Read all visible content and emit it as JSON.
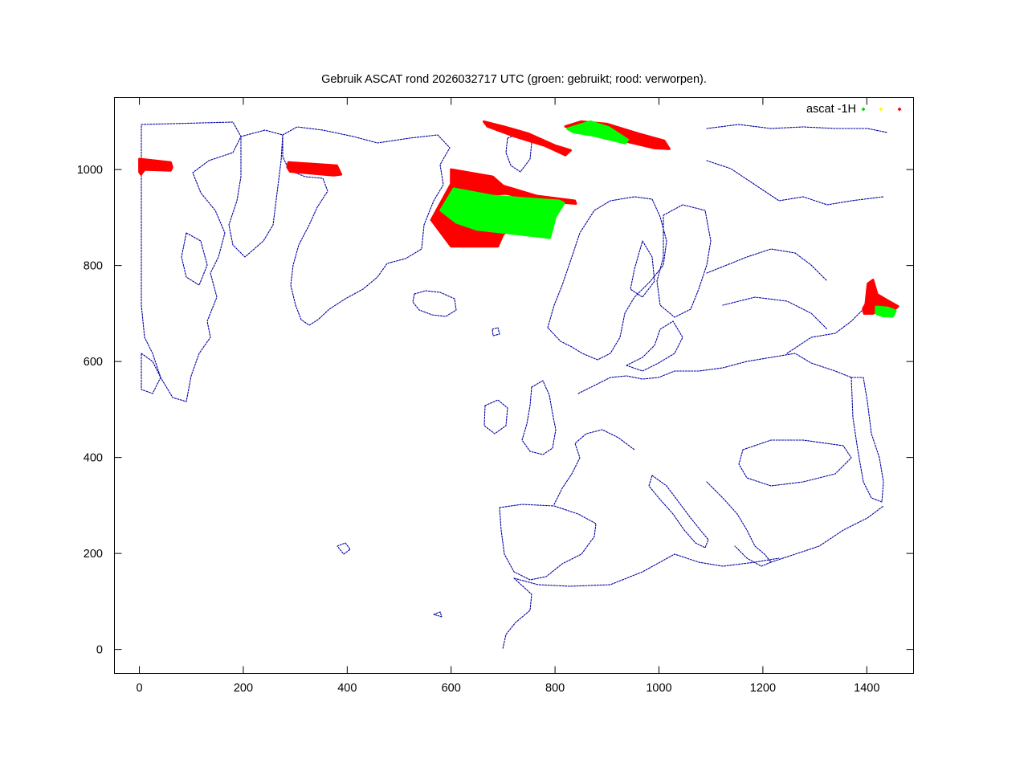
{
  "chart_data": {
    "type": "scatter",
    "title": "Gebruik ASCAT rond 2026032717 UTC (groen: gebruikt; rood: verworpen).",
    "xlabel": "",
    "ylabel": "",
    "xlim": [
      -48,
      1490
    ],
    "ylim": [
      -50,
      1150
    ],
    "x_ticks": [
      0,
      200,
      400,
      600,
      800,
      1000,
      1200,
      1400
    ],
    "y_ticks": [
      0,
      200,
      400,
      600,
      800,
      1000
    ],
    "x_tick_labels": [
      "0",
      "200",
      "400",
      "600",
      "800",
      "1000",
      "1200",
      "1400"
    ],
    "y_tick_labels": [
      "0",
      "200",
      "400",
      "600",
      "800",
      "1000"
    ],
    "grid": false,
    "legend": {
      "placement": "top-right",
      "label": "ascat -1H",
      "marker_colors": [
        "#00dd00",
        "#ffff00",
        "#ff0000"
      ]
    },
    "colors": {
      "used": "#00ff00",
      "rejected": "#ff0000",
      "coastline": "#0000a0"
    },
    "regions": [
      {
        "status": "rejected",
        "points": [
          [
            0,
            1022
          ],
          [
            60,
            1015
          ],
          [
            63,
            1005
          ],
          [
            60,
            998
          ],
          [
            10,
            1000
          ],
          [
            3,
            990
          ],
          [
            0,
            995
          ]
        ]
      },
      {
        "status": "rejected",
        "points": [
          [
            287,
            1015
          ],
          [
            380,
            1008
          ],
          [
            388,
            990
          ],
          [
            374,
            988
          ],
          [
            290,
            996
          ],
          [
            285,
            1005
          ]
        ]
      },
      {
        "status": "rejected",
        "points": [
          [
            600,
            1000
          ],
          [
            680,
            985
          ],
          [
            700,
            966
          ],
          [
            765,
            945
          ],
          [
            838,
            935
          ],
          [
            840,
            929
          ],
          [
            770,
            935
          ],
          [
            705,
            950
          ],
          [
            640,
            945
          ],
          [
            600,
            970
          ]
        ]
      },
      {
        "status": "rejected",
        "points": [
          [
            600,
            970
          ],
          [
            636,
            965
          ],
          [
            690,
            930
          ],
          [
            720,
            915
          ],
          [
            730,
            900
          ],
          [
            720,
            880
          ],
          [
            700,
            865
          ],
          [
            690,
            840
          ],
          [
            600,
            840
          ],
          [
            562,
            895
          ]
        ]
      },
      {
        "status": "used",
        "points": [
          [
            605,
            960
          ],
          [
            680,
            945
          ],
          [
            740,
            940
          ],
          [
            808,
            935
          ],
          [
            817,
            930
          ],
          [
            800,
            900
          ],
          [
            798,
            890
          ],
          [
            790,
            858
          ],
          [
            650,
            875
          ],
          [
            610,
            890
          ],
          [
            580,
            915
          ]
        ]
      },
      {
        "status": "rejected",
        "points": [
          [
            663,
            1100
          ],
          [
            700,
            1090
          ],
          [
            748,
            1075
          ],
          [
            800,
            1050
          ],
          [
            830,
            1040
          ],
          [
            820,
            1030
          ],
          [
            780,
            1050
          ],
          [
            720,
            1070
          ],
          [
            670,
            1090
          ]
        ]
      },
      {
        "status": "rejected",
        "points": [
          [
            820,
            1090
          ],
          [
            850,
            1100
          ],
          [
            900,
            1095
          ],
          [
            960,
            1075
          ],
          [
            1010,
            1060
          ],
          [
            1020,
            1043
          ],
          [
            990,
            1045
          ],
          [
            940,
            1058
          ],
          [
            890,
            1075
          ],
          [
            840,
            1085
          ]
        ]
      },
      {
        "status": "used",
        "points": [
          [
            824,
            1085
          ],
          [
            868,
            1100
          ],
          [
            903,
            1088
          ],
          [
            940,
            1062
          ],
          [
            935,
            1055
          ],
          [
            905,
            1063
          ],
          [
            870,
            1072
          ],
          [
            835,
            1078
          ]
        ]
      },
      {
        "status": "rejected",
        "points": [
          [
            1393,
            710
          ],
          [
            1398,
            720
          ],
          [
            1402,
            762
          ],
          [
            1412,
            770
          ],
          [
            1420,
            740
          ],
          [
            1440,
            727
          ],
          [
            1460,
            715
          ],
          [
            1450,
            705
          ],
          [
            1438,
            704
          ],
          [
            1425,
            710
          ],
          [
            1412,
            700
          ],
          [
            1395,
            700
          ]
        ]
      },
      {
        "status": "used",
        "points": [
          [
            1418,
            714
          ],
          [
            1440,
            712
          ],
          [
            1455,
            706
          ],
          [
            1450,
            694
          ],
          [
            1430,
            695
          ],
          [
            1418,
            700
          ]
        ]
      }
    ]
  }
}
